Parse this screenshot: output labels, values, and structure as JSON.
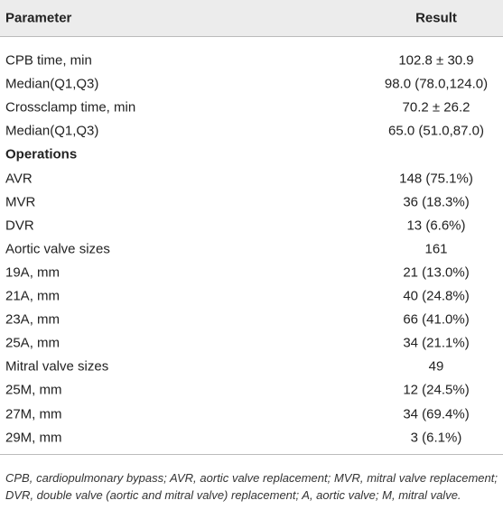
{
  "table": {
    "header": [
      "Parameter",
      "Result"
    ],
    "rows": [
      [
        "CPB time, min",
        "102.8 ± 30.9"
      ],
      [
        "Median(Q1,Q3)",
        "98.0 (78.0,124.0)"
      ],
      [
        "Crossclamp time, min",
        "70.2 ± 26.2"
      ],
      [
        "Median(Q1,Q3)",
        "65.0 (51.0,87.0)"
      ],
      [
        "Operations"
      ],
      [
        "AVR",
        "148 (75.1%)"
      ],
      [
        "MVR",
        "36 (18.3%)"
      ],
      [
        "DVR",
        "13 (6.6%)"
      ],
      [
        "Aortic valve sizes",
        "161"
      ],
      [
        "19A, mm",
        "21 (13.0%)"
      ],
      [
        "21A, mm",
        "40 (24.8%)"
      ],
      [
        "23A, mm",
        "66 (41.0%)"
      ],
      [
        "25A, mm",
        "34 (21.1%)"
      ],
      [
        "Mitral valve sizes",
        "49"
      ],
      [
        "25M, mm",
        "12 (24.5%)"
      ],
      [
        "27M, mm",
        "34 (69.4%)"
      ],
      [
        "29M, mm",
        "3 (6.1%)"
      ]
    ],
    "footnote": "CPB, cardiopulmonary bypass; AVR, aortic valve replacement; MVR, mitral valve replacement; DVR, double valve (aortic and mitral valve) replacement; A, aortic valve; M, mitral valve."
  }
}
